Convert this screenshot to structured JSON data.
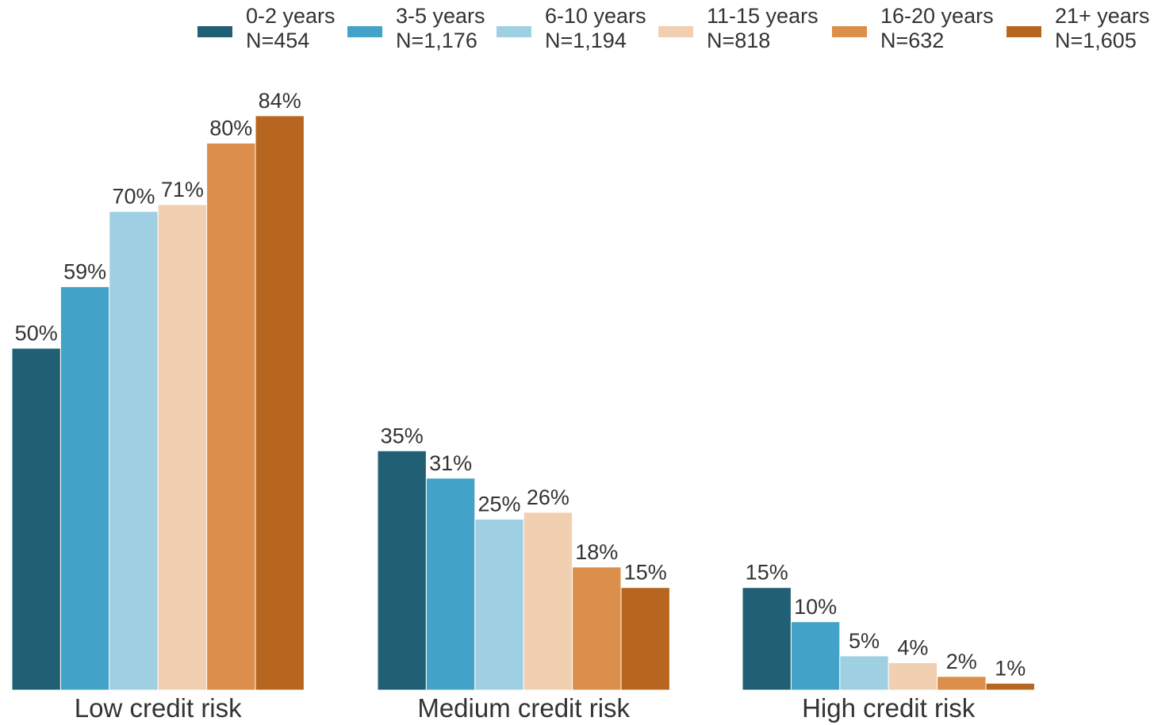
{
  "chart_data": {
    "type": "bar",
    "title": "",
    "xlabel": "",
    "ylabel": "",
    "ylim": [
      0,
      100
    ],
    "grid": false,
    "legend_position": "top",
    "value_suffix": "%",
    "categories": [
      "Low credit risk",
      "Medium credit risk",
      "High credit risk"
    ],
    "series": [
      {
        "name": "0-2 years",
        "n_label": "N=454",
        "color": "#215f74",
        "values": [
          50,
          35,
          15
        ]
      },
      {
        "name": "3-5 years",
        "n_label": "N=1,176",
        "color": "#42a2c8",
        "values": [
          59,
          31,
          10
        ]
      },
      {
        "name": "6-10 years",
        "n_label": "N=1,194",
        "color": "#9fcfe2",
        "values": [
          70,
          25,
          5
        ]
      },
      {
        "name": "11-15 years",
        "n_label": "N=818",
        "color": "#f1cfb1",
        "values": [
          71,
          26,
          4
        ]
      },
      {
        "name": "16-20 years",
        "n_label": "N=632",
        "color": "#dc8e4b",
        "values": [
          80,
          18,
          2
        ]
      },
      {
        "name": "21+ years",
        "n_label": "N=1,605",
        "color": "#b76620",
        "values": [
          84,
          15,
          1
        ]
      }
    ]
  }
}
